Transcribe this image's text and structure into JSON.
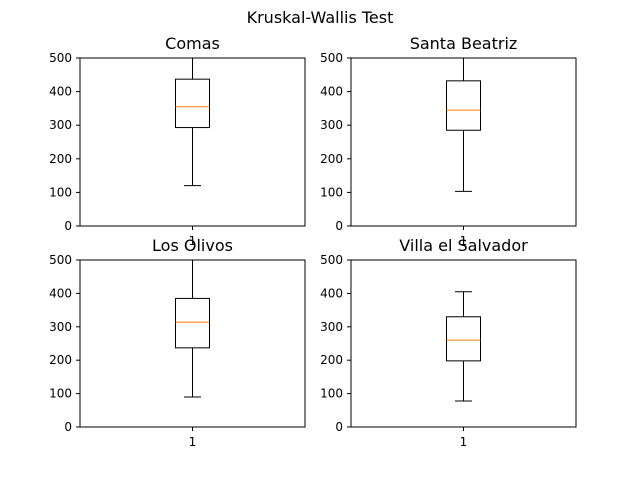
{
  "figure": {
    "title": "Kruskal-Wallis Test"
  },
  "chart_data": [
    {
      "type": "box",
      "title": "Comas",
      "categories": [
        "1"
      ],
      "show_x_tick_label": true,
      "ylim": [
        0,
        500
      ],
      "yticks": [
        0,
        100,
        200,
        300,
        400,
        500
      ],
      "box": {
        "whisker_low": 120,
        "q1": 293,
        "median": 355,
        "q3": 437,
        "whisker_high": 500
      },
      "colors": {
        "box": "#000000",
        "median": "#ff7f0e"
      }
    },
    {
      "type": "box",
      "title": "Santa Beatriz",
      "categories": [
        "1"
      ],
      "show_x_tick_label": true,
      "ylim": [
        0,
        500
      ],
      "yticks": [
        0,
        100,
        200,
        300,
        400,
        500
      ],
      "box": {
        "whisker_low": 103,
        "q1": 285,
        "median": 345,
        "q3": 432,
        "whisker_high": 500
      },
      "colors": {
        "box": "#000000",
        "median": "#ff7f0e"
      }
    },
    {
      "type": "box",
      "title": "Los Olivos",
      "categories": [
        "1"
      ],
      "show_x_tick_label": true,
      "ylim": [
        0,
        500
      ],
      "yticks": [
        0,
        100,
        200,
        300,
        400,
        500
      ],
      "box": {
        "whisker_low": 90,
        "q1": 237,
        "median": 314,
        "q3": 385,
        "whisker_high": 500
      },
      "colors": {
        "box": "#000000",
        "median": "#ff7f0e"
      }
    },
    {
      "type": "box",
      "title": "Villa el Salvador",
      "categories": [
        "1"
      ],
      "show_x_tick_label": true,
      "ylim": [
        0,
        500
      ],
      "yticks": [
        0,
        100,
        200,
        300,
        400,
        500
      ],
      "box": {
        "whisker_low": 78,
        "q1": 198,
        "median": 260,
        "q3": 330,
        "whisker_high": 405
      },
      "colors": {
        "box": "#000000",
        "median": "#ff7f0e"
      }
    }
  ]
}
